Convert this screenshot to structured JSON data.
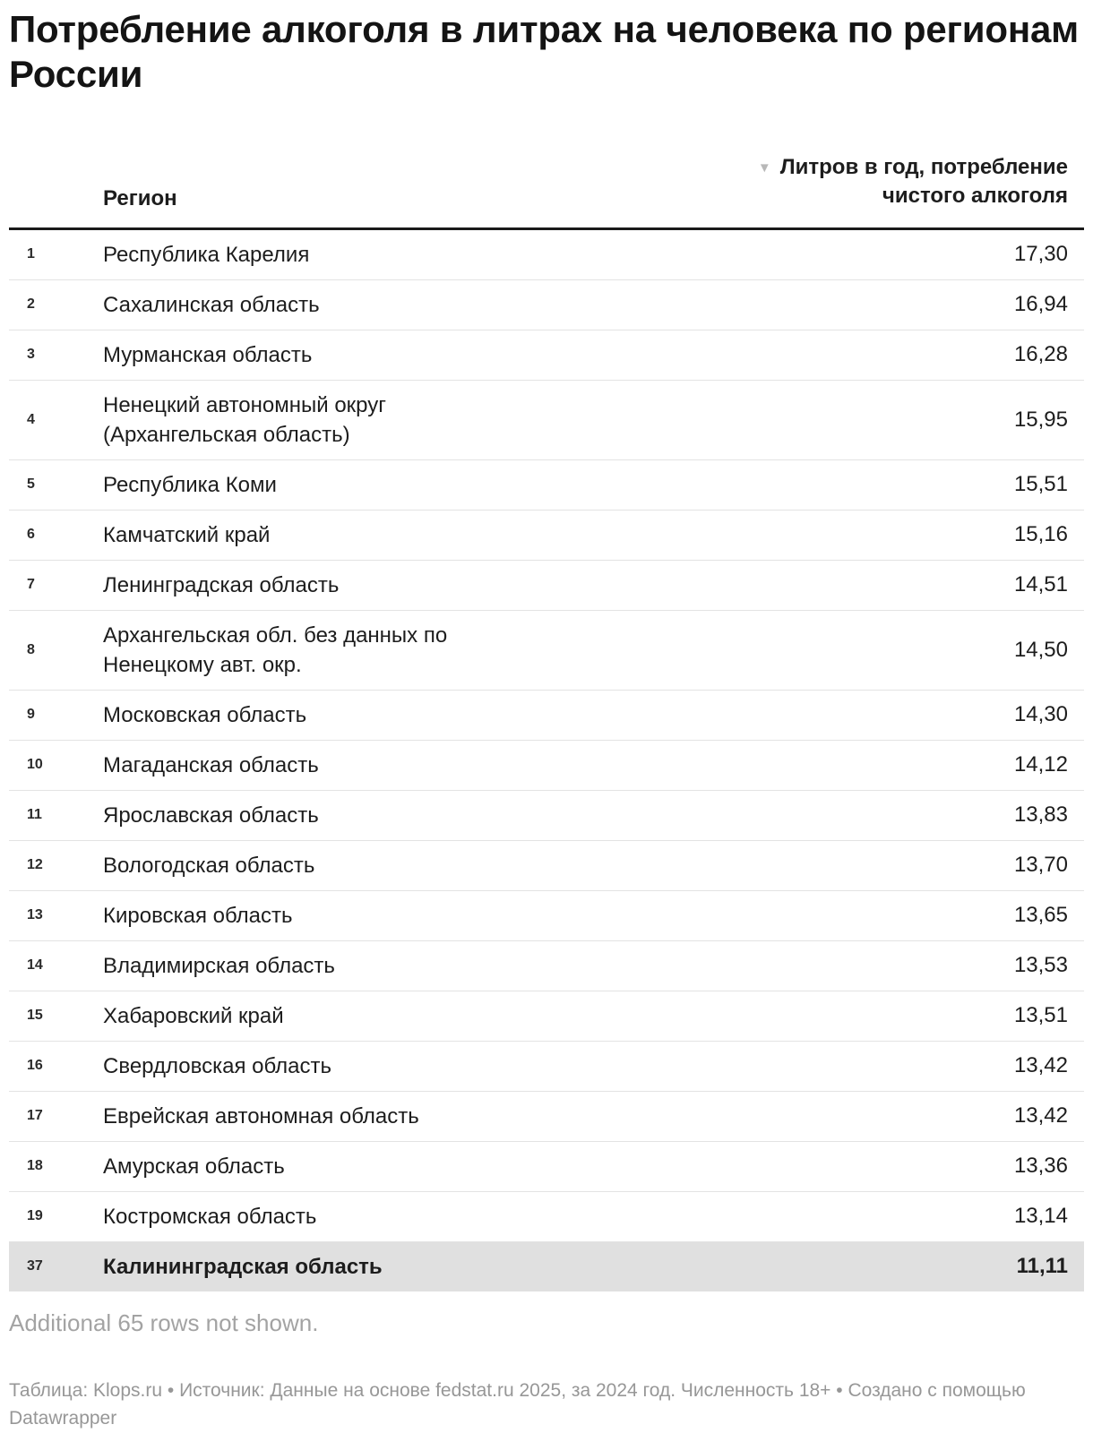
{
  "title": "Потребление алкоголя в литрах на человека по регионам России",
  "table": {
    "col_region": "Регион",
    "col_value_line1": "Литров в год, потребление",
    "col_value_line2": "чистого алкоголя",
    "sort_icon": "▼"
  },
  "chart_data": {
    "type": "table",
    "title": "Потребление алкоголя в литрах на человека по регионам России",
    "columns": [
      "Регион",
      "Литров в год, потребление чистого алкоголя"
    ],
    "sort": "descending by value",
    "rows": [
      {
        "rank": "1",
        "region": "Республика Карелия",
        "value": "17,30",
        "highlighted": false
      },
      {
        "rank": "2",
        "region": "Сахалинская область",
        "value": "16,94",
        "highlighted": false
      },
      {
        "rank": "3",
        "region": "Мурманская область",
        "value": "16,28",
        "highlighted": false
      },
      {
        "rank": "4",
        "region": "Ненецкий автономный округ\n(Архангельская область)",
        "value": "15,95",
        "highlighted": false
      },
      {
        "rank": "5",
        "region": "Республика Коми",
        "value": "15,51",
        "highlighted": false
      },
      {
        "rank": "6",
        "region": "Камчатский край",
        "value": "15,16",
        "highlighted": false
      },
      {
        "rank": "7",
        "region": "Ленинградская область",
        "value": "14,51",
        "highlighted": false
      },
      {
        "rank": "8",
        "region": "Архангельская обл. без данных по\nНенецкому авт. окр.",
        "value": "14,50",
        "highlighted": false
      },
      {
        "rank": "9",
        "region": "Московская область",
        "value": "14,30",
        "highlighted": false
      },
      {
        "rank": "10",
        "region": "Магаданская область",
        "value": "14,12",
        "highlighted": false
      },
      {
        "rank": "11",
        "region": "Ярославская область",
        "value": "13,83",
        "highlighted": false
      },
      {
        "rank": "12",
        "region": "Вологодская область",
        "value": "13,70",
        "highlighted": false
      },
      {
        "rank": "13",
        "region": "Кировская область",
        "value": "13,65",
        "highlighted": false
      },
      {
        "rank": "14",
        "region": "Владимирская область",
        "value": "13,53",
        "highlighted": false
      },
      {
        "rank": "15",
        "region": "Хабаровский край",
        "value": "13,51",
        "highlighted": false
      },
      {
        "rank": "16",
        "region": "Свердловская область",
        "value": "13,42",
        "highlighted": false
      },
      {
        "rank": "17",
        "region": "Еврейская автономная область",
        "value": "13,42",
        "highlighted": false
      },
      {
        "rank": "18",
        "region": "Амурская область",
        "value": "13,36",
        "highlighted": false
      },
      {
        "rank": "19",
        "region": "Костромская область",
        "value": "13,14",
        "highlighted": false
      },
      {
        "rank": "37",
        "region": "Калининградская область",
        "value": "11,11",
        "highlighted": true
      }
    ]
  },
  "note": "Additional 65 rows not shown.",
  "footer": "Таблица: Klops.ru • Источник: Данные на основе fedstat.ru 2025, за 2024 год. Численность 18+ • Создано с помощью Datawrapper",
  "colors": {
    "highlight_row_bg": "#e0e0e0",
    "header_border": "#1a1a1a",
    "row_border": "#e3e3e3",
    "sort_icon": "#b8b8b8",
    "muted_text": "#a3a3a3"
  }
}
